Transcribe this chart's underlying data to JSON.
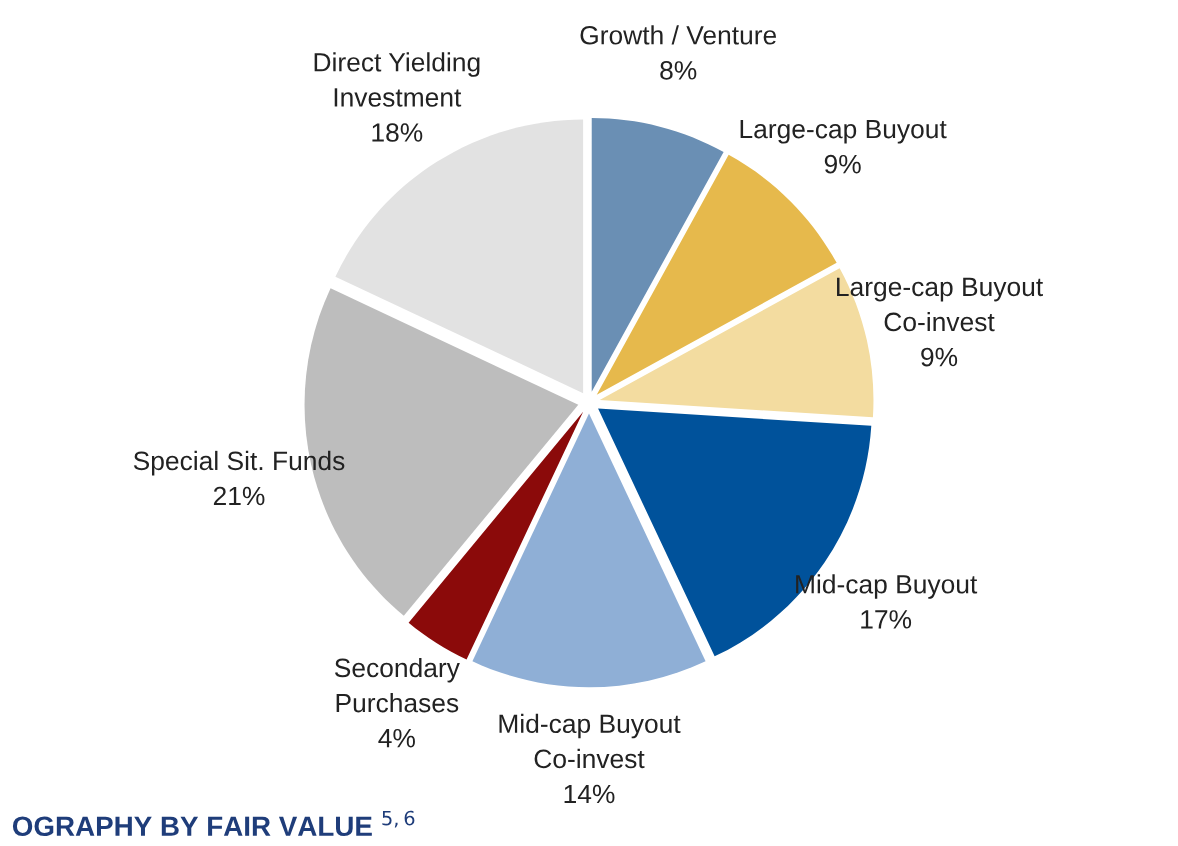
{
  "chart_data": {
    "type": "pie",
    "categories": [
      "Growth / Venture",
      "Large-cap Buyout",
      "Large-cap Buyout\nCo-invest",
      "Mid-cap Buyout",
      "Mid-cap Buyout\nCo-invest",
      "Secondary\nPurchases",
      "Special Sit. Funds",
      "Direct Yielding\nInvestment"
    ],
    "values": [
      8,
      9,
      9,
      17,
      14,
      4,
      21,
      18
    ],
    "value_labels": [
      "8%",
      "9%",
      "9%",
      "17%",
      "14%",
      "4%",
      "21%",
      "18%"
    ],
    "colors": [
      "#6a8fb4",
      "#e6b94c",
      "#f3dca0",
      "#00529b",
      "#8fafd6",
      "#8b0a0a",
      "#bdbdbd",
      "#e2e2e2"
    ],
    "annotations": [
      "OGRAPHY BY FAIR VALUE $^{5,6}$"
    ]
  }
}
